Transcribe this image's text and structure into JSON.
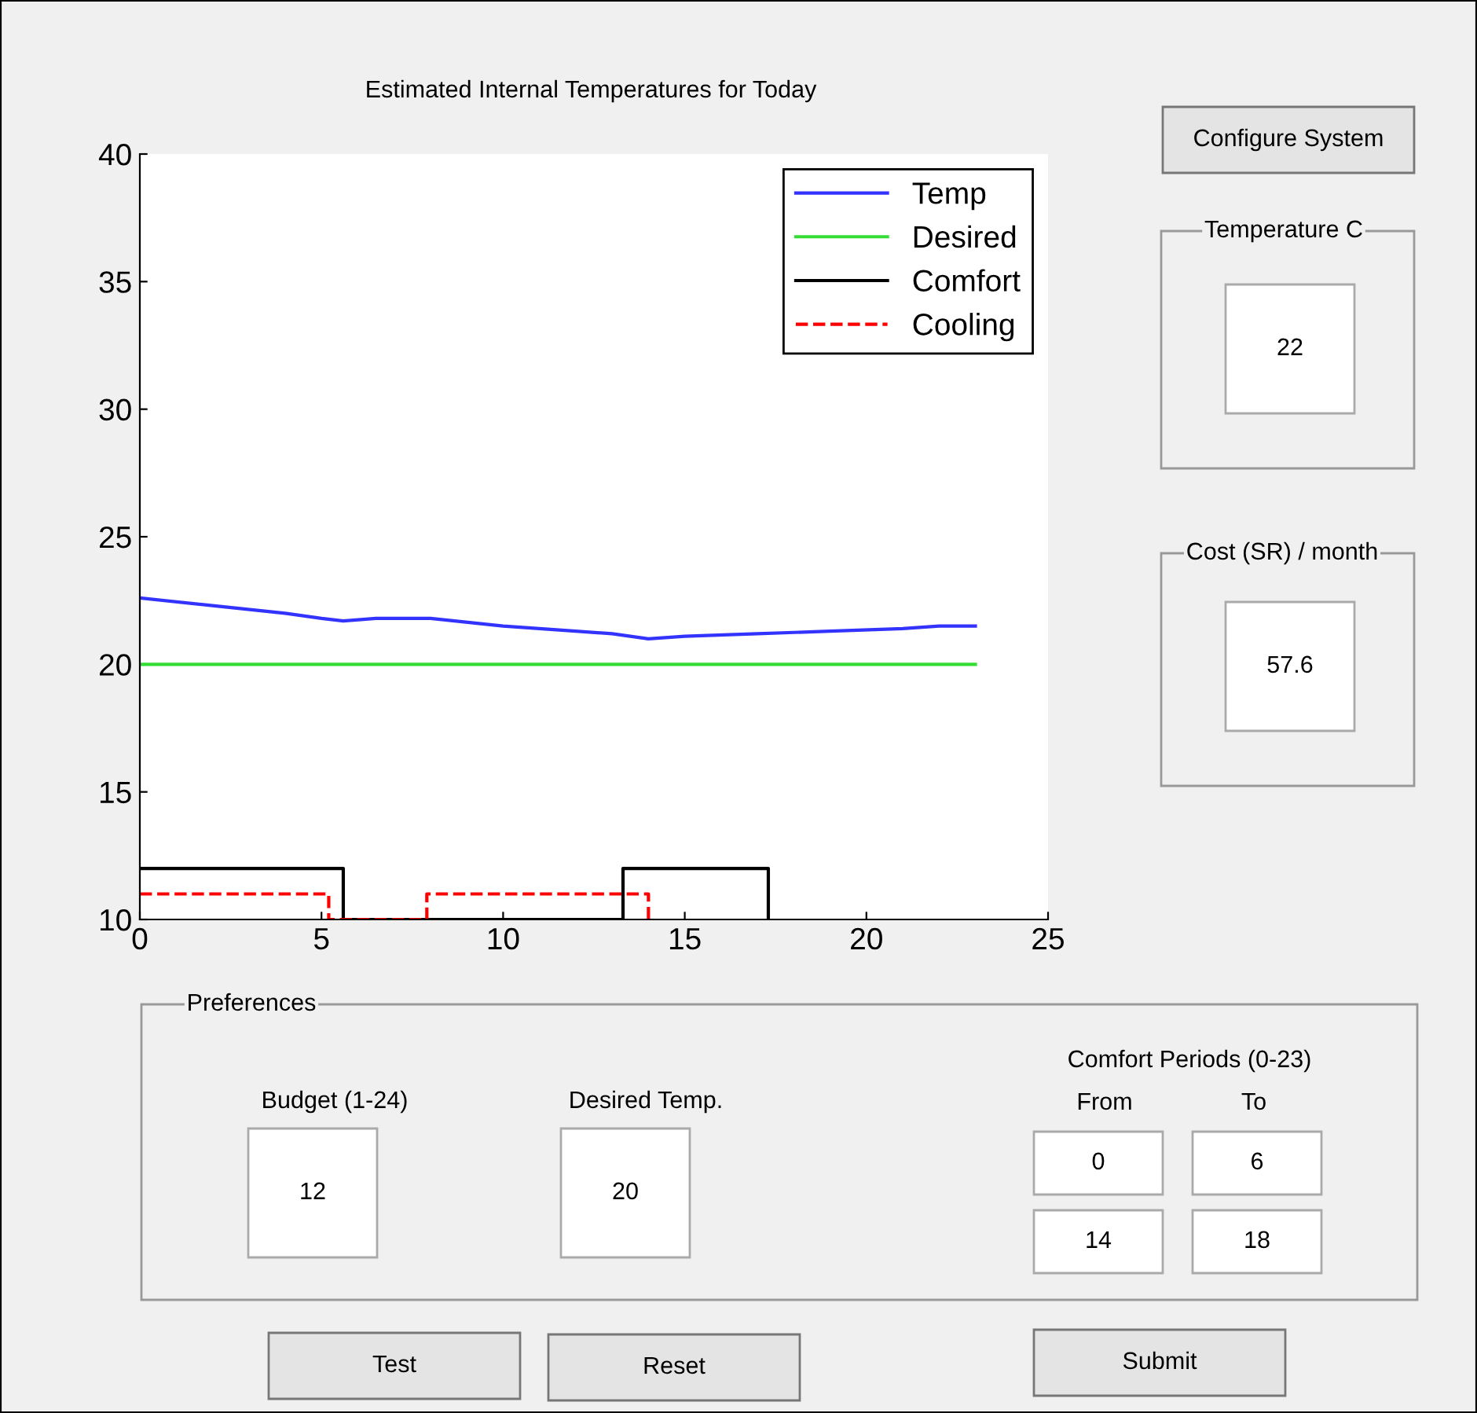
{
  "chart_data": [
    {
      "type": "line",
      "title": "Estimated Internal Temperatures for Today",
      "xlim": [
        0,
        25
      ],
      "xticks": [
        0,
        5,
        10,
        15,
        20,
        25
      ],
      "ylim": [
        10,
        40
      ],
      "yticks": [
        10,
        15,
        20,
        25,
        30,
        35,
        40
      ],
      "grid": false,
      "legend": "top right",
      "series": [
        {
          "name": "Temp",
          "color": "#3333ff",
          "line_style": "solid",
          "x": [
            0,
            2,
            4,
            5,
            5.6,
            6.5,
            8,
            10,
            12,
            13,
            14,
            15,
            17,
            19,
            21,
            22,
            23
          ],
          "values": [
            22.6,
            22.3,
            22.0,
            21.8,
            21.7,
            21.8,
            21.8,
            21.5,
            21.3,
            21.2,
            21.0,
            21.1,
            21.2,
            21.3,
            21.4,
            21.5,
            21.5
          ]
        },
        {
          "name": "Desired",
          "color": "#33dd33",
          "line_style": "solid",
          "x": [
            0,
            23
          ],
          "values": [
            20,
            20
          ]
        },
        {
          "name": "Comfort",
          "color": "#000000",
          "line_style": "solid",
          "x": [
            0,
            5.6,
            5.6,
            13.3,
            13.3,
            17.3,
            17.3
          ],
          "values": [
            12,
            12,
            10,
            10,
            12,
            12,
            10
          ]
        },
        {
          "name": "Cooling",
          "color": "#ff0000",
          "line_style": "dashed",
          "x": [
            0,
            5.2,
            5.2,
            7.9,
            7.9,
            14,
            14
          ],
          "values": [
            11,
            11,
            10,
            10,
            11,
            11,
            10
          ]
        }
      ]
    },
    {
      "type": "other",
      "annotations": [
        "Configure System",
        "Temperature C",
        "22",
        "Cost (SR) / month",
        "57.6",
        "Preferences",
        "Budget (1-24)",
        "12",
        "Desired Temp.",
        "20",
        "Comfort Periods (0-23)",
        "From",
        "To",
        "0",
        "6",
        "14",
        "18",
        "Test",
        "Reset",
        "Submit"
      ]
    }
  ]
}
